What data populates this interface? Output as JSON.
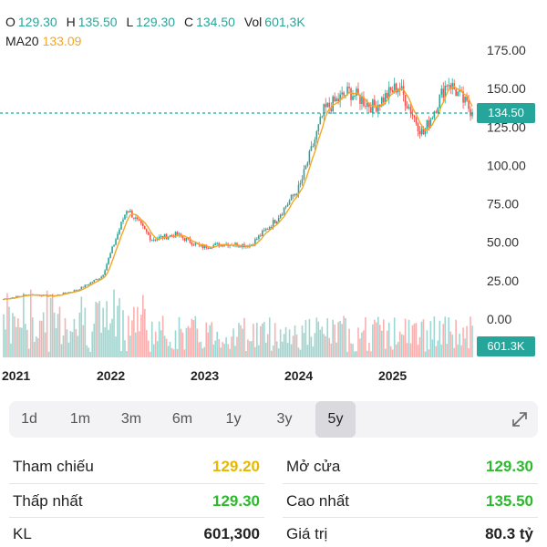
{
  "ohlc": {
    "o_label": "O",
    "o_value": "129.30",
    "h_label": "H",
    "h_value": "135.50",
    "l_label": "L",
    "l_value": "129.30",
    "c_label": "C",
    "c_value": "134.50",
    "vol_label": "Vol",
    "vol_value": "601,3K"
  },
  "ma": {
    "label": "MA20",
    "value": "133.09"
  },
  "price_axis": [
    "175.00",
    "150.00",
    "125.00",
    "100.00",
    "75.00",
    "50.00",
    "25.00",
    "0.00"
  ],
  "time_axis": [
    "2021",
    "2022",
    "2023",
    "2024",
    "2025"
  ],
  "last_price_tag": "134.50",
  "volume_tag": "601.3K",
  "colors": {
    "up": "#26a69a",
    "down": "#ef5350",
    "ma": "#f5a623",
    "ref": "#e6b800",
    "green_text": "#2eb82e"
  },
  "chart_data": {
    "type": "line",
    "x": [
      "2021-01",
      "2021-04",
      "2021-07",
      "2021-10",
      "2022-01",
      "2022-04",
      "2022-07",
      "2022-10",
      "2023-01",
      "2023-04",
      "2023-07",
      "2023-10",
      "2024-01",
      "2024-04",
      "2024-07",
      "2024-10",
      "2025-01",
      "2025-04",
      "2025-07",
      "2025-10"
    ],
    "series": [
      {
        "values": [
          13,
          16,
          15,
          19,
          28,
          72,
          52,
          55,
          47,
          49,
          48,
          64,
          86,
          136,
          148,
          138,
          152,
          120,
          155,
          134.5
        ]
      }
    ],
    "ylim": [
      0,
      175
    ]
  },
  "ranges": [
    "1d",
    "1m",
    "3m",
    "6m",
    "1y",
    "3y",
    "5y"
  ],
  "active_range": "5y",
  "stats": {
    "ref_label": "Tham chiếu",
    "ref_value": "129.20",
    "open_label": "Mở cửa",
    "open_value": "129.30",
    "low_label": "Thấp nhất",
    "low_value": "129.30",
    "high_label": "Cao nhất",
    "high_value": "135.50",
    "vol_label": "KL",
    "vol_value": "601,300",
    "value_label": "Giá trị",
    "value_value": "80.3 tỷ"
  }
}
